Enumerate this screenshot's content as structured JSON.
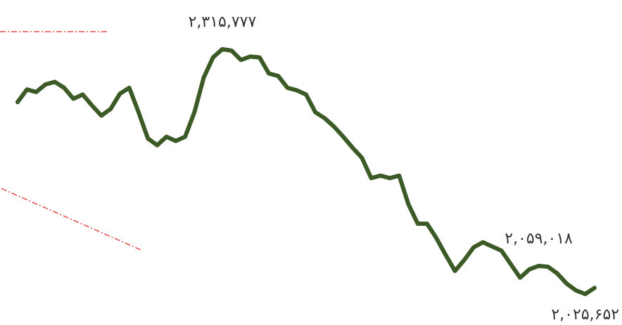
{
  "chart_data": {
    "type": "line",
    "series": [
      {
        "color": "#3b5a25",
        "values": [
          2253000,
          2268000,
          2265000,
          2274000,
          2277000,
          2270000,
          2257000,
          2262000,
          2249000,
          2237000,
          2245000,
          2263000,
          2270000,
          2241000,
          2210000,
          2202000,
          2212000,
          2207000,
          2212000,
          2241000,
          2282000,
          2306000,
          2315777,
          2314000,
          2303000,
          2307000,
          2306000,
          2287000,
          2284000,
          2270000,
          2267000,
          2262000,
          2241000,
          2234000,
          2224000,
          2212000,
          2199000,
          2187000,
          2163000,
          2166000,
          2163000,
          2166000,
          2132000,
          2109000,
          2109000,
          2092000,
          2072000,
          2053000,
          2066000,
          2081000,
          2087000,
          2082000,
          2077000,
          2061000,
          2045000,
          2055000,
          2059018,
          2058000,
          2050000,
          2038000,
          2030000,
          2025652,
          2033000
        ]
      }
    ],
    "ylim": [
      1989000,
      2374000
    ],
    "annotations": [
      {
        "text": "۲,۳۱۵,۷۷۷",
        "value": 2315777,
        "position": "above"
      },
      {
        "text": "۲,۰۵۹,۰۱۸",
        "value": 2059018,
        "position": "above"
      },
      {
        "text": "۲,۰۲۵,۶۵۲",
        "value": 2025652,
        "position": "below"
      }
    ]
  }
}
